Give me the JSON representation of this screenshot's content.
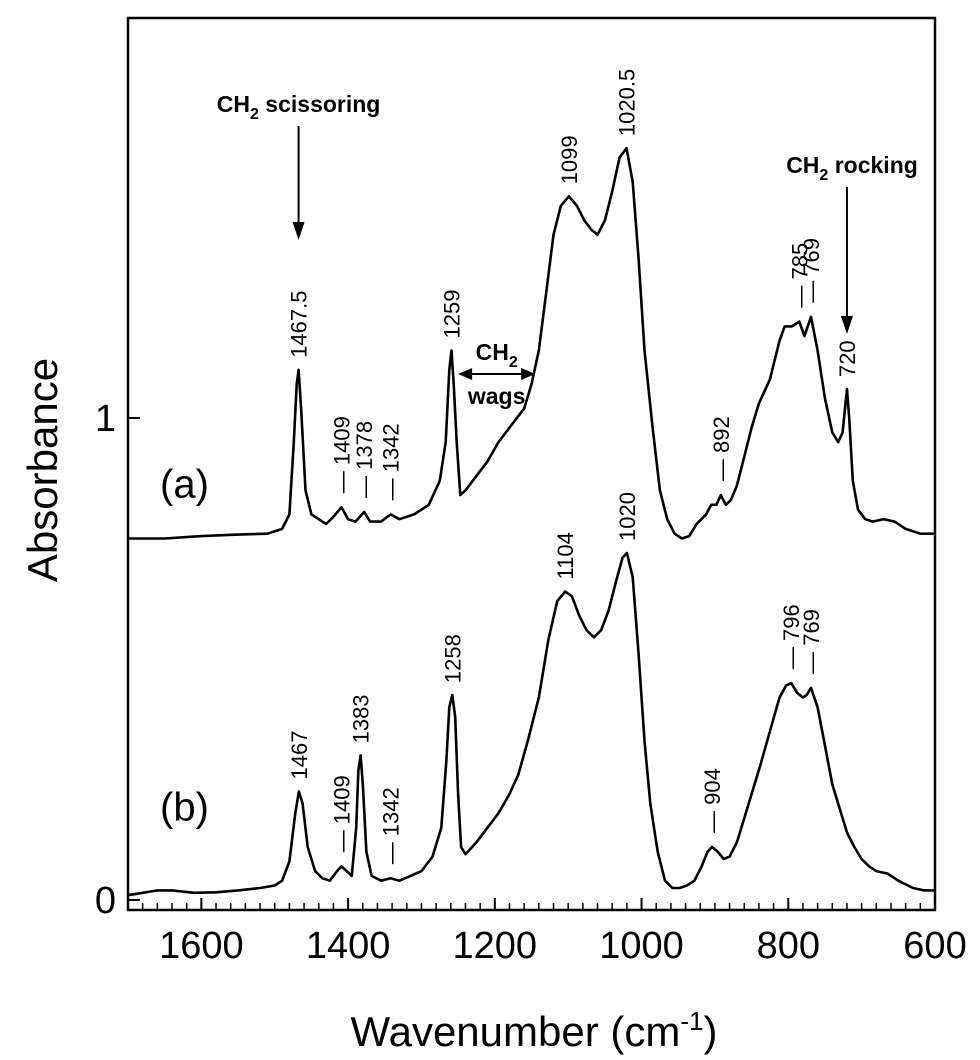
{
  "chart_data": {
    "type": "line",
    "title": "",
    "xlabel": "Wavenumber (cm",
    "xlabel_sup": "-1",
    "xlabel_close": ")",
    "ylabel": "Absorbance",
    "xlim": [
      1700,
      600
    ],
    "ylim": [
      0,
      1.6
    ],
    "x_ticks": [
      "1600",
      "1400",
      "1200",
      "1000",
      "800",
      "600"
    ],
    "y_ticks": [
      "0",
      "1"
    ],
    "grid": false,
    "series": [
      {
        "label": "(a)",
        "points": [
          [
            1700,
            0.75
          ],
          [
            1650,
            0.75
          ],
          [
            1600,
            0.755
          ],
          [
            1550,
            0.758
          ],
          [
            1510,
            0.76
          ],
          [
            1490,
            0.77
          ],
          [
            1480,
            0.8
          ],
          [
            1474,
            0.95
          ],
          [
            1470,
            1.07
          ],
          [
            1467.5,
            1.1
          ],
          [
            1464,
            1.02
          ],
          [
            1458,
            0.85
          ],
          [
            1450,
            0.8
          ],
          [
            1440,
            0.79
          ],
          [
            1430,
            0.78
          ],
          [
            1420,
            0.795
          ],
          [
            1409,
            0.815
          ],
          [
            1400,
            0.79
          ],
          [
            1390,
            0.785
          ],
          [
            1378,
            0.805
          ],
          [
            1370,
            0.785
          ],
          [
            1355,
            0.785
          ],
          [
            1342,
            0.8
          ],
          [
            1330,
            0.79
          ],
          [
            1310,
            0.8
          ],
          [
            1290,
            0.82
          ],
          [
            1275,
            0.87
          ],
          [
            1267,
            0.95
          ],
          [
            1262,
            1.1
          ],
          [
            1259,
            1.14
          ],
          [
            1256,
            1.07
          ],
          [
            1252,
            0.95
          ],
          [
            1247,
            0.84
          ],
          [
            1240,
            0.85
          ],
          [
            1225,
            0.88
          ],
          [
            1210,
            0.91
          ],
          [
            1195,
            0.95
          ],
          [
            1180,
            0.98
          ],
          [
            1170,
            1.0
          ],
          [
            1160,
            1.02
          ],
          [
            1150,
            1.07
          ],
          [
            1140,
            1.14
          ],
          [
            1130,
            1.26
          ],
          [
            1120,
            1.38
          ],
          [
            1110,
            1.44
          ],
          [
            1099,
            1.46
          ],
          [
            1088,
            1.44
          ],
          [
            1078,
            1.41
          ],
          [
            1068,
            1.39
          ],
          [
            1060,
            1.38
          ],
          [
            1050,
            1.41
          ],
          [
            1040,
            1.47
          ],
          [
            1030,
            1.54
          ],
          [
            1020.5,
            1.56
          ],
          [
            1012,
            1.49
          ],
          [
            1004,
            1.33
          ],
          [
            996,
            1.14
          ],
          [
            985,
            0.98
          ],
          [
            975,
            0.85
          ],
          [
            965,
            0.79
          ],
          [
            955,
            0.76
          ],
          [
            945,
            0.75
          ],
          [
            935,
            0.755
          ],
          [
            925,
            0.78
          ],
          [
            912,
            0.8
          ],
          [
            905,
            0.82
          ],
          [
            898,
            0.82
          ],
          [
            892,
            0.84
          ],
          [
            885,
            0.82
          ],
          [
            878,
            0.83
          ],
          [
            870,
            0.86
          ],
          [
            860,
            0.92
          ],
          [
            850,
            0.98
          ],
          [
            840,
            1.03
          ],
          [
            825,
            1.08
          ],
          [
            812,
            1.16
          ],
          [
            805,
            1.19
          ],
          [
            795,
            1.19
          ],
          [
            785,
            1.2
          ],
          [
            778,
            1.17
          ],
          [
            769,
            1.21
          ],
          [
            760,
            1.14
          ],
          [
            750,
            1.04
          ],
          [
            740,
            0.97
          ],
          [
            732,
            0.95
          ],
          [
            726,
            0.97
          ],
          [
            722,
            1.03
          ],
          [
            720,
            1.06
          ],
          [
            717,
            1.0
          ],
          [
            712,
            0.87
          ],
          [
            705,
            0.81
          ],
          [
            695,
            0.79
          ],
          [
            685,
            0.785
          ],
          [
            670,
            0.79
          ],
          [
            655,
            0.785
          ],
          [
            640,
            0.77
          ],
          [
            620,
            0.76
          ],
          [
            600,
            0.76
          ]
        ]
      },
      {
        "label": "(b)",
        "points": [
          [
            1700,
            0.01
          ],
          [
            1680,
            0.015
          ],
          [
            1660,
            0.02
          ],
          [
            1640,
            0.02
          ],
          [
            1610,
            0.015
          ],
          [
            1580,
            0.016
          ],
          [
            1550,
            0.02
          ],
          [
            1520,
            0.025
          ],
          [
            1500,
            0.03
          ],
          [
            1490,
            0.04
          ],
          [
            1480,
            0.08
          ],
          [
            1472,
            0.18
          ],
          [
            1467,
            0.225
          ],
          [
            1462,
            0.2
          ],
          [
            1455,
            0.11
          ],
          [
            1445,
            0.06
          ],
          [
            1435,
            0.045
          ],
          [
            1425,
            0.04
          ],
          [
            1415,
            0.06
          ],
          [
            1409,
            0.07
          ],
          [
            1402,
            0.06
          ],
          [
            1395,
            0.05
          ],
          [
            1389,
            0.15
          ],
          [
            1386,
            0.27
          ],
          [
            1383,
            0.3
          ],
          [
            1380,
            0.24
          ],
          [
            1375,
            0.1
          ],
          [
            1368,
            0.05
          ],
          [
            1355,
            0.04
          ],
          [
            1342,
            0.045
          ],
          [
            1330,
            0.04
          ],
          [
            1315,
            0.05
          ],
          [
            1300,
            0.06
          ],
          [
            1285,
            0.09
          ],
          [
            1273,
            0.15
          ],
          [
            1266,
            0.29
          ],
          [
            1262,
            0.4
          ],
          [
            1258,
            0.425
          ],
          [
            1254,
            0.38
          ],
          [
            1250,
            0.22
          ],
          [
            1246,
            0.11
          ],
          [
            1240,
            0.095
          ],
          [
            1225,
            0.12
          ],
          [
            1210,
            0.15
          ],
          [
            1195,
            0.18
          ],
          [
            1180,
            0.22
          ],
          [
            1168,
            0.26
          ],
          [
            1155,
            0.33
          ],
          [
            1140,
            0.42
          ],
          [
            1127,
            0.54
          ],
          [
            1115,
            0.62
          ],
          [
            1104,
            0.64
          ],
          [
            1095,
            0.63
          ],
          [
            1085,
            0.59
          ],
          [
            1075,
            0.56
          ],
          [
            1065,
            0.545
          ],
          [
            1055,
            0.56
          ],
          [
            1045,
            0.6
          ],
          [
            1035,
            0.66
          ],
          [
            1026,
            0.71
          ],
          [
            1020,
            0.72
          ],
          [
            1012,
            0.67
          ],
          [
            1004,
            0.51
          ],
          [
            996,
            0.33
          ],
          [
            988,
            0.2
          ],
          [
            978,
            0.1
          ],
          [
            968,
            0.04
          ],
          [
            958,
            0.025
          ],
          [
            948,
            0.025
          ],
          [
            938,
            0.03
          ],
          [
            928,
            0.04
          ],
          [
            918,
            0.07
          ],
          [
            910,
            0.1
          ],
          [
            904,
            0.11
          ],
          [
            896,
            0.1
          ],
          [
            888,
            0.085
          ],
          [
            880,
            0.09
          ],
          [
            870,
            0.12
          ],
          [
            860,
            0.17
          ],
          [
            850,
            0.22
          ],
          [
            838,
            0.28
          ],
          [
            825,
            0.35
          ],
          [
            812,
            0.42
          ],
          [
            803,
            0.445
          ],
          [
            796,
            0.45
          ],
          [
            788,
            0.43
          ],
          [
            780,
            0.42
          ],
          [
            775,
            0.425
          ],
          [
            769,
            0.44
          ],
          [
            760,
            0.4
          ],
          [
            750,
            0.32
          ],
          [
            740,
            0.24
          ],
          [
            730,
            0.19
          ],
          [
            720,
            0.14
          ],
          [
            710,
            0.11
          ],
          [
            700,
            0.085
          ],
          [
            690,
            0.07
          ],
          [
            680,
            0.06
          ],
          [
            665,
            0.055
          ],
          [
            650,
            0.04
          ],
          [
            630,
            0.025
          ],
          [
            615,
            0.02
          ],
          [
            600,
            0.02
          ]
        ]
      }
    ],
    "peak_labels": [
      {
        "text": "1467.5",
        "x": 1467.5,
        "y": 1.1,
        "dash": false
      },
      {
        "text": "— 1409",
        "x": 1409,
        "y": 0.815,
        "dash": true
      },
      {
        "text": "— 1378",
        "x": 1378,
        "y": 0.805,
        "dash": true
      },
      {
        "text": "— 1342",
        "x": 1342,
        "y": 0.8,
        "dash": true
      },
      {
        "text": "1259",
        "x": 1259,
        "y": 1.14,
        "dash": false
      },
      {
        "text": "1099",
        "x": 1099,
        "y": 1.46,
        "dash": false
      },
      {
        "text": "1020.5",
        "x": 1020.5,
        "y": 1.56,
        "dash": false
      },
      {
        "text": "— 892",
        "x": 892,
        "y": 0.84,
        "dash": true
      },
      {
        "text": "— 785",
        "x": 785,
        "y": 1.2,
        "dash": true
      },
      {
        "text": "— 769",
        "x": 769,
        "y": 1.21,
        "dash": true
      },
      {
        "text": "720",
        "x": 720,
        "y": 1.06,
        "dash": false
      },
      {
        "text": "1467",
        "x": 1467,
        "y": 0.225,
        "dash": false
      },
      {
        "text": "— 1409",
        "x": 1409,
        "y": 0.07,
        "dash": true
      },
      {
        "text": "1383",
        "x": 1383,
        "y": 0.3,
        "dash": false
      },
      {
        "text": "— 1342",
        "x": 1342,
        "y": 0.045,
        "dash": true
      },
      {
        "text": "1258",
        "x": 1258,
        "y": 0.425,
        "dash": false
      },
      {
        "text": "1104",
        "x": 1104,
        "y": 0.64,
        "dash": false
      },
      {
        "text": "1020",
        "x": 1020,
        "y": 0.72,
        "dash": false
      },
      {
        "text": "— 904",
        "x": 904,
        "y": 0.11,
        "dash": true
      },
      {
        "text": "— 796",
        "x": 796,
        "y": 0.45,
        "dash": true
      },
      {
        "text": "— 769",
        "x": 769,
        "y": 0.44,
        "dash": true
      }
    ],
    "annotations": {
      "scissoring": {
        "main": "CH",
        "sub": "2",
        "rest": " scissoring",
        "x": 1467.5
      },
      "rocking": {
        "main": "CH",
        "sub": "2",
        "rest": " rocking",
        "x": 720
      },
      "wags": {
        "main": "CH",
        "sub": "2",
        "line2": "wags",
        "x_from": 1250,
        "x_to": 1145
      }
    }
  }
}
